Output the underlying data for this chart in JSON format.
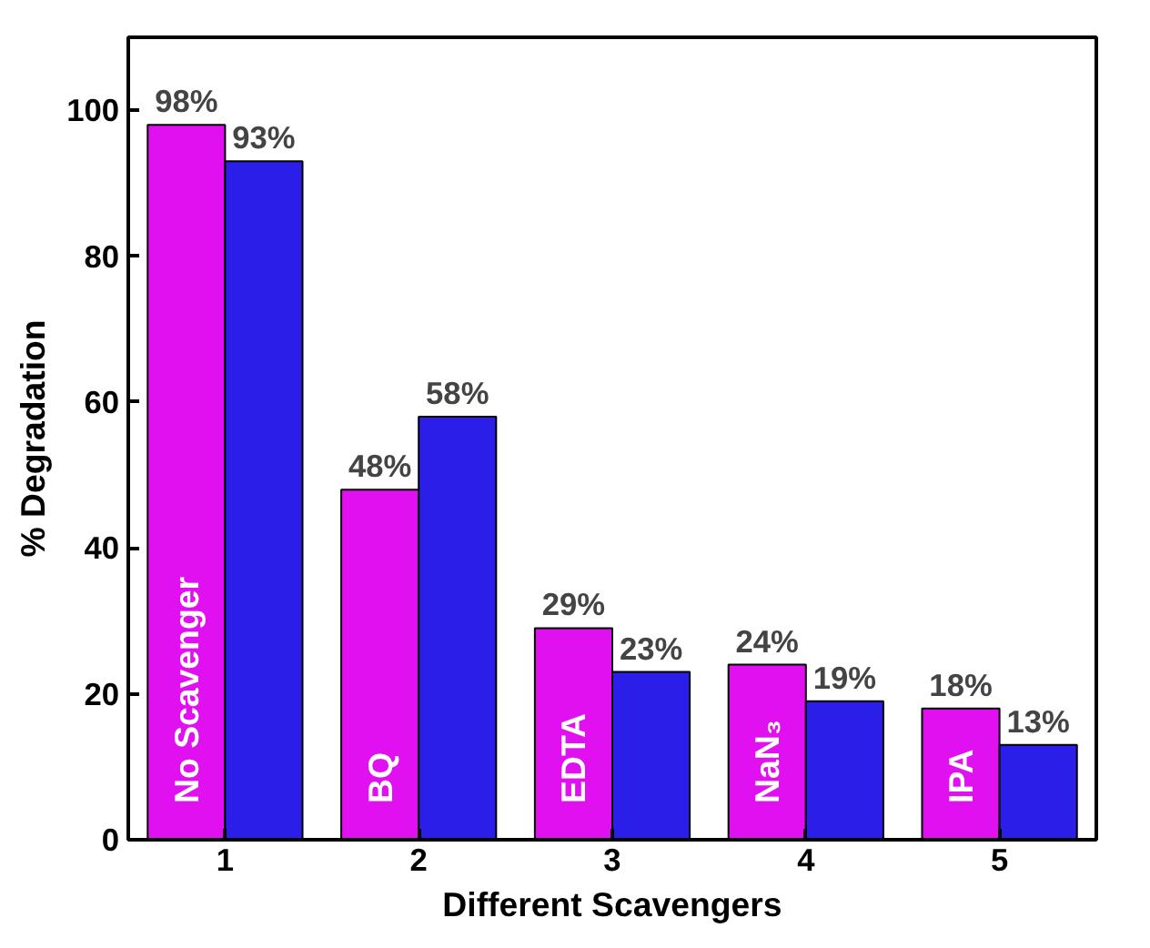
{
  "chart_data": {
    "type": "bar",
    "xlabel": "Different Scavengers",
    "ylabel": "% Degradation",
    "categories": [
      "1",
      "2",
      "3",
      "4",
      "5"
    ],
    "series": [
      {
        "color": "#e010f0",
        "values": [
          98,
          48,
          29,
          24,
          18
        ],
        "value_labels": [
          "98%",
          "48%",
          "29%",
          "24%",
          "18%"
        ]
      },
      {
        "color": "#2a1ee8",
        "values": [
          93,
          58,
          23,
          19,
          13
        ],
        "value_labels": [
          "93%",
          "58%",
          "23%",
          "19%",
          "13%"
        ]
      }
    ],
    "ylim": [
      0,
      110
    ],
    "yticks": [
      0,
      20,
      40,
      60,
      80,
      100
    ],
    "grid": false,
    "annotations": [
      {
        "text": "No Scavenger",
        "x": "1",
        "y": 5
      },
      {
        "text": "BQ",
        "x": "2",
        "y": 5
      },
      {
        "text": "EDTA",
        "x": "3",
        "y": 5
      },
      {
        "text": "NaN₃",
        "x": "4",
        "y": 5
      },
      {
        "text": "IPA",
        "x": "5",
        "y": 5
      }
    ]
  }
}
